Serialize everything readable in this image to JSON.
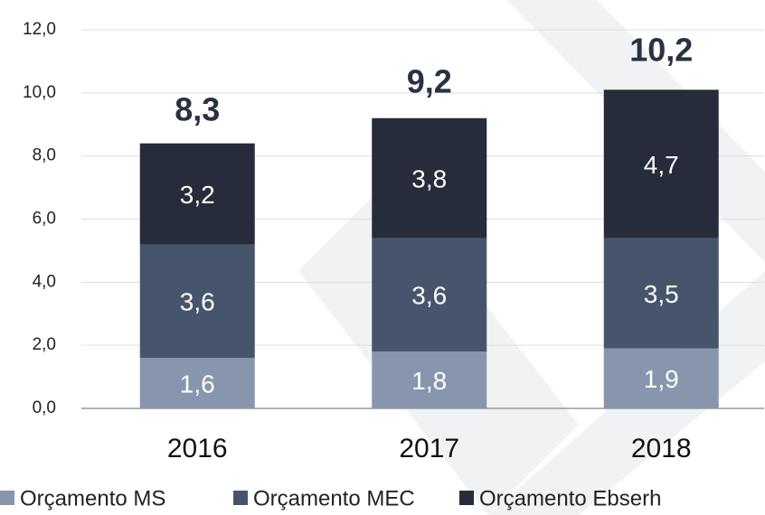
{
  "chart_data": {
    "type": "stacked_bar",
    "categories": [
      "2016",
      "2017",
      "2018"
    ],
    "series": [
      {
        "name": "Orçamento MS",
        "color": "#8896ad",
        "values": [
          1.6,
          1.8,
          1.9
        ],
        "value_labels": [
          "1,6",
          "1,8",
          "1,9"
        ]
      },
      {
        "name": "Orçamento MEC",
        "color": "#47556c",
        "values": [
          3.6,
          3.6,
          3.5
        ],
        "value_labels": [
          "3,6",
          "3,6",
          "3,5"
        ]
      },
      {
        "name": "Orçamento Ebserh",
        "color": "#262c39",
        "values": [
          3.2,
          3.8,
          4.7
        ],
        "value_labels": [
          "3,2",
          "3,8",
          "4,7"
        ]
      }
    ],
    "totals": [
      8.3,
      9.2,
      10.2
    ],
    "total_labels": [
      "8,3",
      "9,2",
      "10,2"
    ],
    "ylim": [
      0,
      12
    ],
    "yticks": [
      {
        "value": 0,
        "label": "0,0"
      },
      {
        "value": 2,
        "label": "2,0"
      },
      {
        "value": 4,
        "label": "4,0"
      },
      {
        "value": 6,
        "label": "6,0"
      },
      {
        "value": 8,
        "label": "8,0"
      },
      {
        "value": 10,
        "label": "10,0"
      },
      {
        "value": 12,
        "label": "12,0"
      }
    ],
    "grid": true,
    "legend": "bottom"
  }
}
